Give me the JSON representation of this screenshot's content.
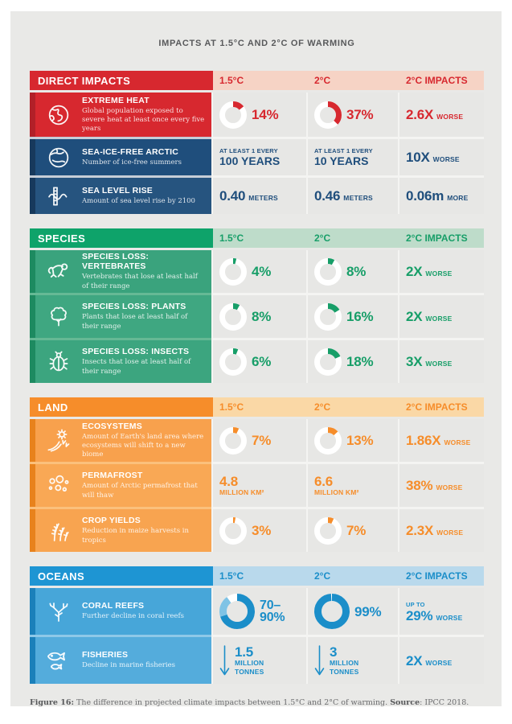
{
  "page": {
    "title": "IMPACTS AT 1.5°C AND 2°C OF WARMING",
    "caption": {
      "figure_label": "Figure 16:",
      "figure_text": " The difference in projected climate impacts between 1.5°C and 2°C of warming. ",
      "source_label": "Source",
      "source_text": ": IPCC 2018."
    },
    "background": "#ffffff",
    "panel_background": "#e9e9e7"
  },
  "columns": {
    "c1": "1.5°C",
    "c2": "2°C",
    "c3": "2°C IMPACTS"
  },
  "sections": [
    {
      "name": "DIRECT IMPACTS",
      "colors": {
        "header": "#d7282f",
        "strip": "#f6d3c5",
        "text": "#d7282f",
        "tint": "#c7ced8"
      },
      "rows": [
        {
          "title": "EXTREME HEAT",
          "desc": "Global population exposed to severe heat at least once every five years",
          "icon": "globe-icon",
          "bg": "#d7282f",
          "accent": "#b22028",
          "value_color": "#d7282f",
          "c1": {
            "donut": {
              "pct": 14,
              "color": "#d7282f",
              "size": 34
            },
            "label": "14%"
          },
          "c2": {
            "donut": {
              "pct": 37,
              "color": "#d7282f",
              "size": 34
            },
            "label": "37%"
          },
          "c3": {
            "big": "2.6X",
            "small": "WORSE"
          }
        },
        {
          "title": "SEA-ICE-FREE ARCTIC",
          "desc": "Number of ice-free summers",
          "icon": "globe-arctic-icon",
          "bg": "#1f4e7c",
          "accent": "#17395c",
          "value_color": "#1f4e7c",
          "c1": {
            "small_top": "AT LEAST 1 EVERY",
            "big": "100 YEARS"
          },
          "c2": {
            "small_top": "AT LEAST 1 EVERY",
            "big": "10 YEARS"
          },
          "c3": {
            "big": "10X",
            "small": "WORSE"
          }
        },
        {
          "title": "SEA LEVEL RISE",
          "desc": "Amount of sea level rise by 2100",
          "icon": "sea-level-ruler-icon",
          "bg": "#26547f",
          "accent": "#17395c",
          "value_color": "#1f4e7c",
          "c1": {
            "big": "0.40",
            "small": "METERS"
          },
          "c2": {
            "big": "0.46",
            "small": "METERS"
          },
          "c3": {
            "big": "0.06m",
            "small": "MORE"
          }
        }
      ]
    },
    {
      "name": "SPECIES",
      "colors": {
        "header": "#0ea36a",
        "strip": "#bedcca",
        "text": "#179e68",
        "tint": "#66b995"
      },
      "rows": [
        {
          "title": "SPECIES LOSS: VERTEBRATES",
          "desc": "Vertebrates that lose at least half of their range",
          "icon": "monkey-icon",
          "bg": "#3aa37d",
          "accent": "#1d8a60",
          "value_color": "#179e68",
          "c1": {
            "donut": {
              "pct": 4,
              "color": "#179e68",
              "size": 34
            },
            "label": "4%"
          },
          "c2": {
            "donut": {
              "pct": 8,
              "color": "#179e68",
              "size": 34
            },
            "label": "8%"
          },
          "c3": {
            "big": "2X",
            "small": "WORSE"
          }
        },
        {
          "title": "SPECIES LOSS: PLANTS",
          "desc": "Plants that lose at least half of their range",
          "icon": "tree-icon",
          "bg": "#3fa781",
          "accent": "#1d8a60",
          "value_color": "#179e68",
          "c1": {
            "donut": {
              "pct": 8,
              "color": "#179e68",
              "size": 34
            },
            "label": "8%"
          },
          "c2": {
            "donut": {
              "pct": 16,
              "color": "#179e68",
              "size": 34
            },
            "label": "16%"
          },
          "c3": {
            "big": "2X",
            "small": "WORSE"
          }
        },
        {
          "title": "SPECIES LOSS: INSECTS",
          "desc": "Insects that lose at least half of their range",
          "icon": "beetle-icon",
          "bg": "#3ca57f",
          "accent": "#1d8a60",
          "value_color": "#179e68",
          "c1": {
            "donut": {
              "pct": 6,
              "color": "#179e68",
              "size": 34
            },
            "label": "6%"
          },
          "c2": {
            "donut": {
              "pct": 18,
              "color": "#179e68",
              "size": 34
            },
            "label": "18%"
          },
          "c3": {
            "big": "3X",
            "small": "WORSE"
          }
        }
      ]
    },
    {
      "name": "LAND",
      "colors": {
        "header": "#f68d2a",
        "strip": "#fad8a6",
        "text": "#f68d2a",
        "tint": "#fbc07c"
      },
      "rows": [
        {
          "title": "ECOSYSTEMS",
          "desc": "Amount of Earth's land area where ecosystems will shift to a new biome",
          "icon": "sun-field-icon",
          "bg": "#f8a14d",
          "accent": "#e8821c",
          "value_color": "#f68d2a",
          "c1": {
            "donut": {
              "pct": 7,
              "color": "#f68d2a",
              "size": 34
            },
            "label": "7%"
          },
          "c2": {
            "donut": {
              "pct": 13,
              "color": "#f68d2a",
              "size": 34
            },
            "label": "13%"
          },
          "c3": {
            "big": "1.86X",
            "small": "WORSE"
          }
        },
        {
          "title": "PERMAFROST",
          "desc": "Amount of Arctic permafrost that will thaw",
          "icon": "permafrost-circles-icon",
          "bg": "#f9a855",
          "accent": "#e8821c",
          "value_color": "#f68d2a",
          "c1": {
            "big": "4.8",
            "small_under": "MILLION KM²"
          },
          "c2": {
            "big": "6.6",
            "small_under": "MILLION KM²"
          },
          "c3": {
            "big": "38%",
            "small": "WORSE"
          }
        },
        {
          "title": "CROP YIELDS",
          "desc": "Reduction in maize harvests in tropics",
          "icon": "wheat-icon",
          "bg": "#f8a450",
          "accent": "#e8821c",
          "value_color": "#f68d2a",
          "c1": {
            "donut": {
              "pct": 3,
              "color": "#f68d2a",
              "size": 34
            },
            "label": "3%"
          },
          "c2": {
            "donut": {
              "pct": 7,
              "color": "#f68d2a",
              "size": 34
            },
            "label": "7%"
          },
          "c3": {
            "big": "2.3X",
            "small": "WORSE"
          }
        }
      ]
    },
    {
      "name": "OCEANS",
      "colors": {
        "header": "#1e95d3",
        "strip": "#b9d9ec",
        "text": "#1b8ec9",
        "tint": "#8ec8e8"
      },
      "rows": [
        {
          "title": "CORAL REEFS",
          "desc": "Further decline in coral reefs",
          "icon": "coral-icon",
          "bg": "#47a6d9",
          "accent": "#1b80ba",
          "value_color": "#1b8ec9",
          "c1": {
            "donut": {
              "size": 44,
              "segments": [
                {
                  "from": 0,
                  "to": 70,
                  "color": "#1b8ec9"
                },
                {
                  "from": 70,
                  "to": 90,
                  "color": "#7fc3e5"
                }
              ]
            },
            "label_line1": "70–",
            "label_line2": "90%"
          },
          "c2": {
            "donut": {
              "pct": 99,
              "color": "#1b8ec9",
              "size": 44
            },
            "label": "99%"
          },
          "c3": {
            "small_top": "UP TO",
            "big": "29%",
            "small": "WORSE"
          }
        },
        {
          "title": "FISHERIES",
          "desc": "Decline in marine fisheries",
          "icon": "fish-icon",
          "bg": "#54acdc",
          "accent": "#1b80ba",
          "value_color": "#1b8ec9",
          "c1": {
            "arrow": "down",
            "big": "1.5",
            "small_line1": "MILLION",
            "small_line2": "TONNES"
          },
          "c2": {
            "arrow": "down",
            "big": "3",
            "small_line1": "MILLION",
            "small_line2": "TONNES"
          },
          "c3": {
            "big": "2X",
            "small": "WORSE"
          }
        }
      ]
    }
  ],
  "chart_data": {
    "type": "table",
    "title": "IMPACTS AT 1.5°C AND 2°C OF WARMING",
    "columns": [
      "Impact",
      "1.5°C",
      "2°C",
      "2°C IMPACTS"
    ],
    "rows": [
      [
        "Extreme heat — global population exposed to severe heat at least once every five years",
        "14%",
        "37%",
        "2.6X worse"
      ],
      [
        "Sea-ice-free Arctic — number of ice-free summers",
        "At least 1 every 100 years",
        "At least 1 every 10 years",
        "10X worse"
      ],
      [
        "Sea level rise — amount of sea level rise by 2100",
        "0.40 meters",
        "0.46 meters",
        "0.06m more"
      ],
      [
        "Species loss: vertebrates — lose at least half of their range",
        "4%",
        "8%",
        "2X worse"
      ],
      [
        "Species loss: plants — lose at least half of their range",
        "8%",
        "16%",
        "2X worse"
      ],
      [
        "Species loss: insects — lose at least half of their range",
        "6%",
        "18%",
        "3X worse"
      ],
      [
        "Ecosystems — Earth's land area shifting to a new biome",
        "7%",
        "13%",
        "1.86X worse"
      ],
      [
        "Permafrost — Arctic permafrost that will thaw",
        "4.8 million km²",
        "6.6 million km²",
        "38% worse"
      ],
      [
        "Crop yields — reduction in maize harvests in tropics",
        "3%",
        "7%",
        "2.3X worse"
      ],
      [
        "Coral reefs — further decline in coral reefs",
        "70–90%",
        "99%",
        "up to 29% worse"
      ],
      [
        "Fisheries — decline in marine fisheries",
        "1.5 million tonnes",
        "3 million tonnes",
        "2X worse"
      ]
    ]
  }
}
